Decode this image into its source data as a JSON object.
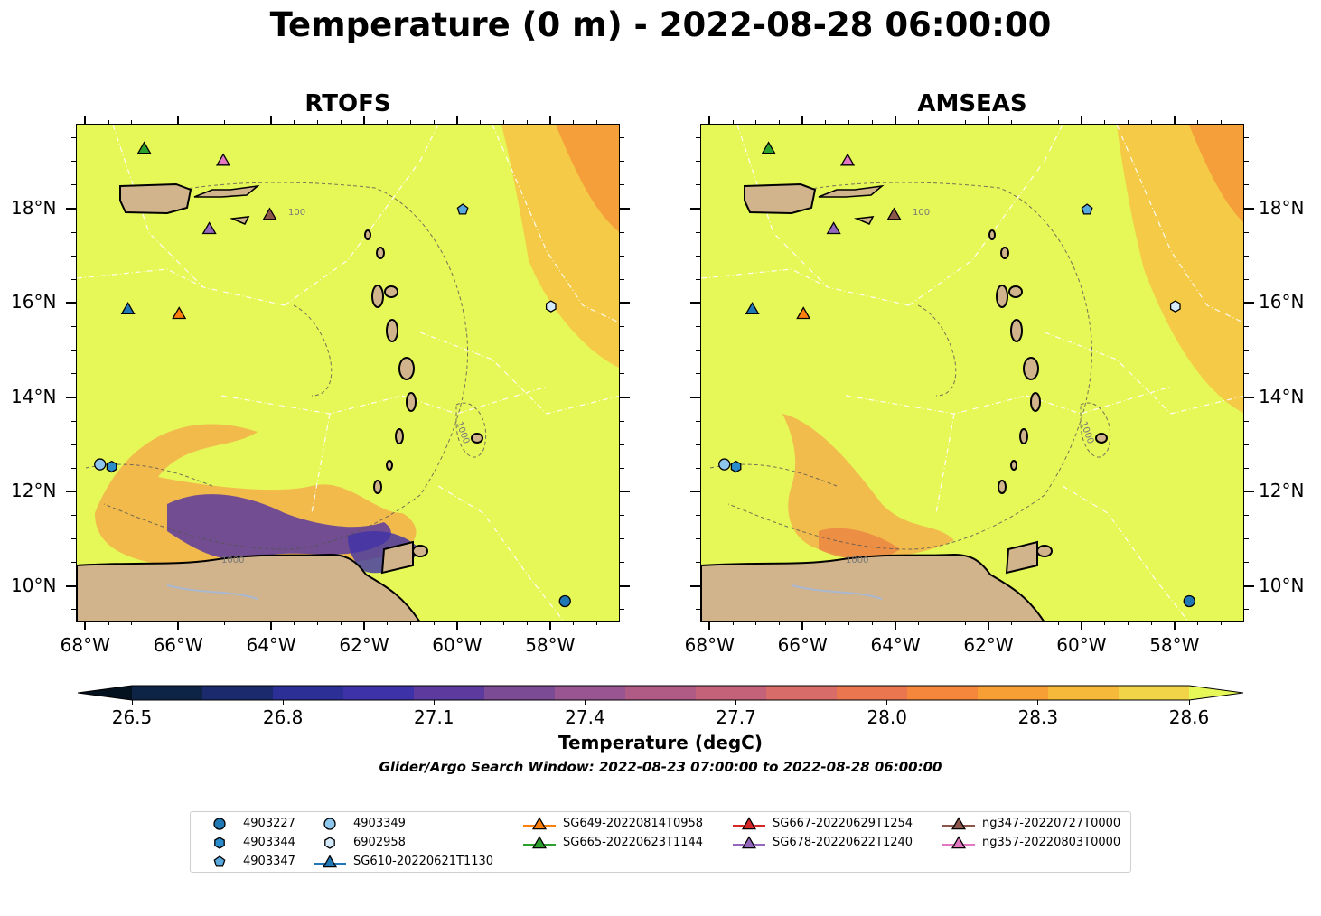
{
  "title": "Temperature (0 m) - 2022-08-28 06:00:00",
  "panels": [
    {
      "name": "RTOFS"
    },
    {
      "name": "AMSEAS"
    }
  ],
  "axes": {
    "lon_labels": [
      "68°W",
      "66°W",
      "64°W",
      "62°W",
      "60°W",
      "58°W"
    ],
    "lat_labels": [
      "18°N",
      "16°N",
      "14°N",
      "12°N",
      "10°N"
    ],
    "lon_range": [
      -68.2,
      -56.5
    ],
    "lat_range": [
      9.25,
      19.8
    ]
  },
  "colorbar": {
    "label": "Temperature (degC)",
    "ticks": [
      "26.5",
      "26.8",
      "27.1",
      "27.4",
      "27.7",
      "28.0",
      "28.3",
      "28.6"
    ],
    "range": [
      26.5,
      28.6
    ],
    "extend": "both"
  },
  "search_window": "Glider/Argo Search Window: 2022-08-23 07:00:00 to 2022-08-28 06:00:00",
  "isobath_labels": [
    "100",
    "1000"
  ],
  "legend": [
    {
      "label": "4903227",
      "marker": "circle",
      "color": "#1f77b4"
    },
    {
      "label": "4903344",
      "marker": "hexagon",
      "color": "#2b8ccb"
    },
    {
      "label": "4903347",
      "marker": "pentagon",
      "color": "#58a7dd"
    },
    {
      "label": "4903349",
      "marker": "circle",
      "color": "#8fc6ee"
    },
    {
      "label": "6902958",
      "marker": "hexagon",
      "color": "#d5ebfb"
    },
    {
      "label": "SG610-20220621T1130",
      "marker": "triangle",
      "color": "#1f77b4"
    },
    {
      "label": "SG649-20220814T0958",
      "marker": "triangle",
      "color": "#ff7f0e"
    },
    {
      "label": "SG665-20220623T1144",
      "marker": "triangle",
      "color": "#2ca02c"
    },
    {
      "label": "SG667-20220629T1254",
      "marker": "triangle",
      "color": "#d62728"
    },
    {
      "label": "SG678-20220622T1240",
      "marker": "triangle",
      "color": "#9467bd"
    },
    {
      "label": "ng347-20220727T0000",
      "marker": "triangle",
      "color": "#8c564b"
    },
    {
      "label": "ng357-20220803T0000",
      "marker": "triangle",
      "color": "#e377c2"
    }
  ],
  "platforms": [
    {
      "label": "4903227",
      "lon": -57.7,
      "lat": 9.7
    },
    {
      "label": "4903344",
      "lon": -67.45,
      "lat": 12.55
    },
    {
      "label": "4903347",
      "lon": -59.9,
      "lat": 18.0
    },
    {
      "label": "4903349",
      "lon": -67.7,
      "lat": 12.6
    },
    {
      "label": "6902958",
      "lon": -58.0,
      "lat": 15.95
    },
    {
      "label": "SG610-20220621T1130",
      "lon": -67.1,
      "lat": 15.9
    },
    {
      "label": "SG649-20220814T0958",
      "lon": -66.0,
      "lat": 15.8
    },
    {
      "label": "SG665-20220623T1144",
      "lon": -66.75,
      "lat": 19.3
    },
    {
      "label": "SG678-20220622T1240",
      "lon": -65.35,
      "lat": 17.6
    },
    {
      "label": "ng347-20220727T0000",
      "lon": -64.05,
      "lat": 17.9
    },
    {
      "label": "ng357-20220803T0000",
      "lon": -65.05,
      "lat": 19.05
    }
  ],
  "colors": {
    "ocean_background": "#e6f758",
    "land": "#d2b48c",
    "cmap": [
      "#04111f",
      "#0e2447",
      "#1a2a6c",
      "#2c2f95",
      "#3e32a8",
      "#5c3a9e",
      "#7b4b95",
      "#985592",
      "#b05a86",
      "#c4627a",
      "#d76c68",
      "#e9764f",
      "#f4873c",
      "#f79f35",
      "#f6b93a",
      "#f1d448",
      "#e6f758"
    ]
  }
}
